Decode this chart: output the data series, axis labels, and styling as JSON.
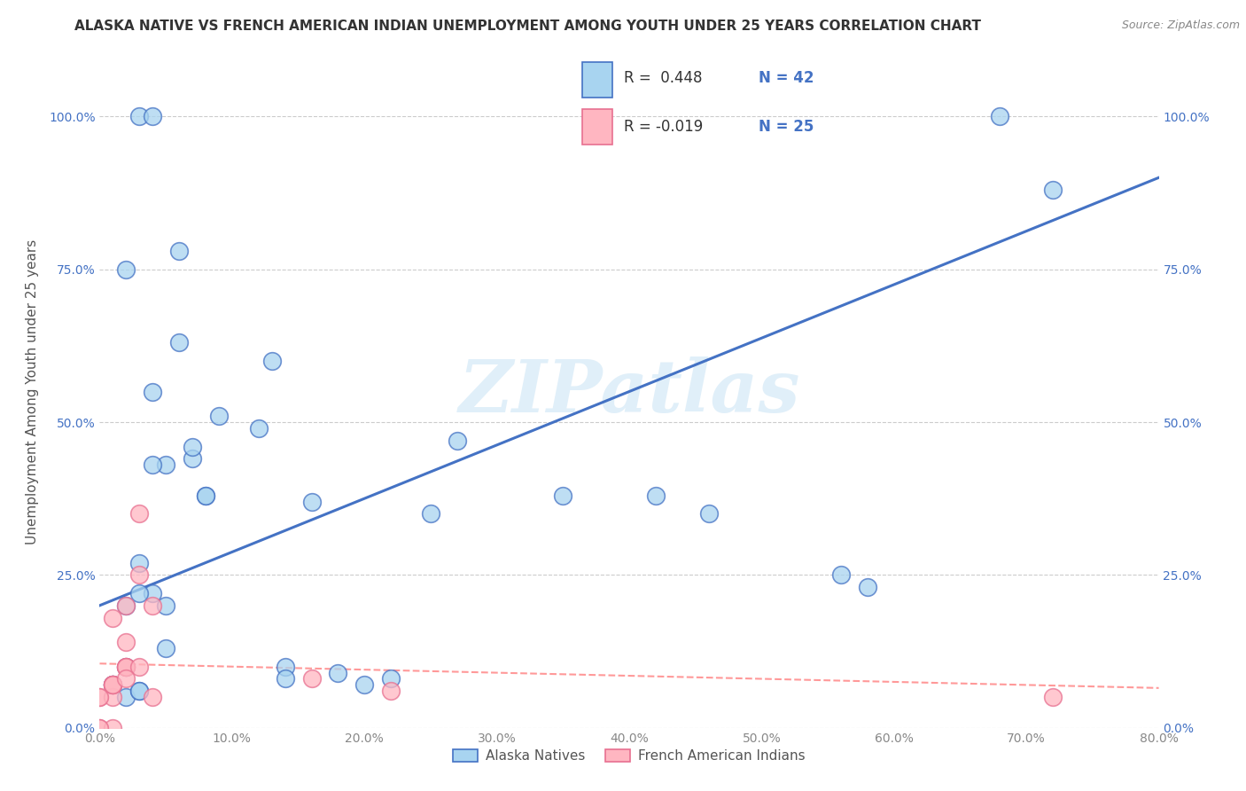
{
  "title": "ALASKA NATIVE VS FRENCH AMERICAN INDIAN UNEMPLOYMENT AMONG YOUTH UNDER 25 YEARS CORRELATION CHART",
  "source": "Source: ZipAtlas.com",
  "ylabel": "Unemployment Among Youth under 25 years",
  "watermark": "ZIPatlas",
  "blue_color": "#a8d4f0",
  "pink_color": "#ffb6c1",
  "line_blue": "#4472c4",
  "line_pink": "#ff9999",
  "xlim": [
    0.0,
    0.8
  ],
  "ylim": [
    0.0,
    1.1
  ],
  "xticks": [
    0.0,
    0.1,
    0.2,
    0.3,
    0.4,
    0.5,
    0.6,
    0.7,
    0.8
  ],
  "yticks": [
    0.0,
    0.25,
    0.5,
    0.75,
    1.0
  ],
  "xtick_labels": [
    "0.0%",
    "10.0%",
    "20.0%",
    "30.0%",
    "40.0%",
    "50.0%",
    "60.0%",
    "70.0%",
    "80.0%"
  ],
  "ytick_labels": [
    "0.0%",
    "25.0%",
    "50.0%",
    "75.0%",
    "100.0%"
  ],
  "alaska_x": [
    0.02,
    0.04,
    0.05,
    0.14,
    0.2,
    0.02,
    0.05,
    0.07,
    0.03,
    0.04,
    0.09,
    0.07,
    0.03,
    0.01,
    0.02,
    0.02,
    0.08,
    0.08,
    0.12,
    0.13,
    0.22,
    0.16,
    0.42,
    0.56,
    0.58,
    0.03,
    0.04,
    0.04,
    0.06,
    0.27,
    0.35,
    0.46,
    0.14,
    0.18,
    0.05,
    0.06,
    0.25,
    0.68,
    0.01,
    0.03,
    0.03,
    0.72
  ],
  "alaska_y": [
    0.2,
    0.22,
    0.2,
    0.1,
    0.07,
    0.75,
    0.43,
    0.44,
    0.22,
    0.43,
    0.51,
    0.46,
    0.27,
    0.07,
    0.1,
    0.05,
    0.38,
    0.38,
    0.49,
    0.6,
    0.08,
    0.37,
    0.38,
    0.25,
    0.23,
    1.0,
    1.0,
    0.55,
    0.78,
    0.47,
    0.38,
    0.35,
    0.08,
    0.09,
    0.13,
    0.63,
    0.35,
    1.0,
    0.07,
    0.06,
    0.06,
    0.88
  ],
  "french_x": [
    0.01,
    0.0,
    0.01,
    0.02,
    0.01,
    0.03,
    0.01,
    0.02,
    0.02,
    0.02,
    0.01,
    0.01,
    0.03,
    0.0,
    0.0,
    0.02,
    0.03,
    0.01,
    0.0,
    0.16,
    0.22,
    0.04,
    0.04,
    0.02,
    0.72
  ],
  "french_y": [
    0.07,
    0.05,
    0.07,
    0.2,
    0.05,
    0.35,
    0.18,
    0.1,
    0.1,
    0.14,
    0.07,
    0.07,
    0.25,
    0.0,
    0.05,
    0.1,
    0.1,
    0.0,
    0.0,
    0.08,
    0.06,
    0.05,
    0.2,
    0.08,
    0.05
  ],
  "blue_line_x0": 0.0,
  "blue_line_y0": 0.2,
  "blue_line_x1": 0.8,
  "blue_line_y1": 0.9,
  "pink_line_x0": 0.0,
  "pink_line_y0": 0.105,
  "pink_line_x1": 0.8,
  "pink_line_y1": 0.065,
  "figsize": [
    14.06,
    8.92
  ],
  "dpi": 100
}
